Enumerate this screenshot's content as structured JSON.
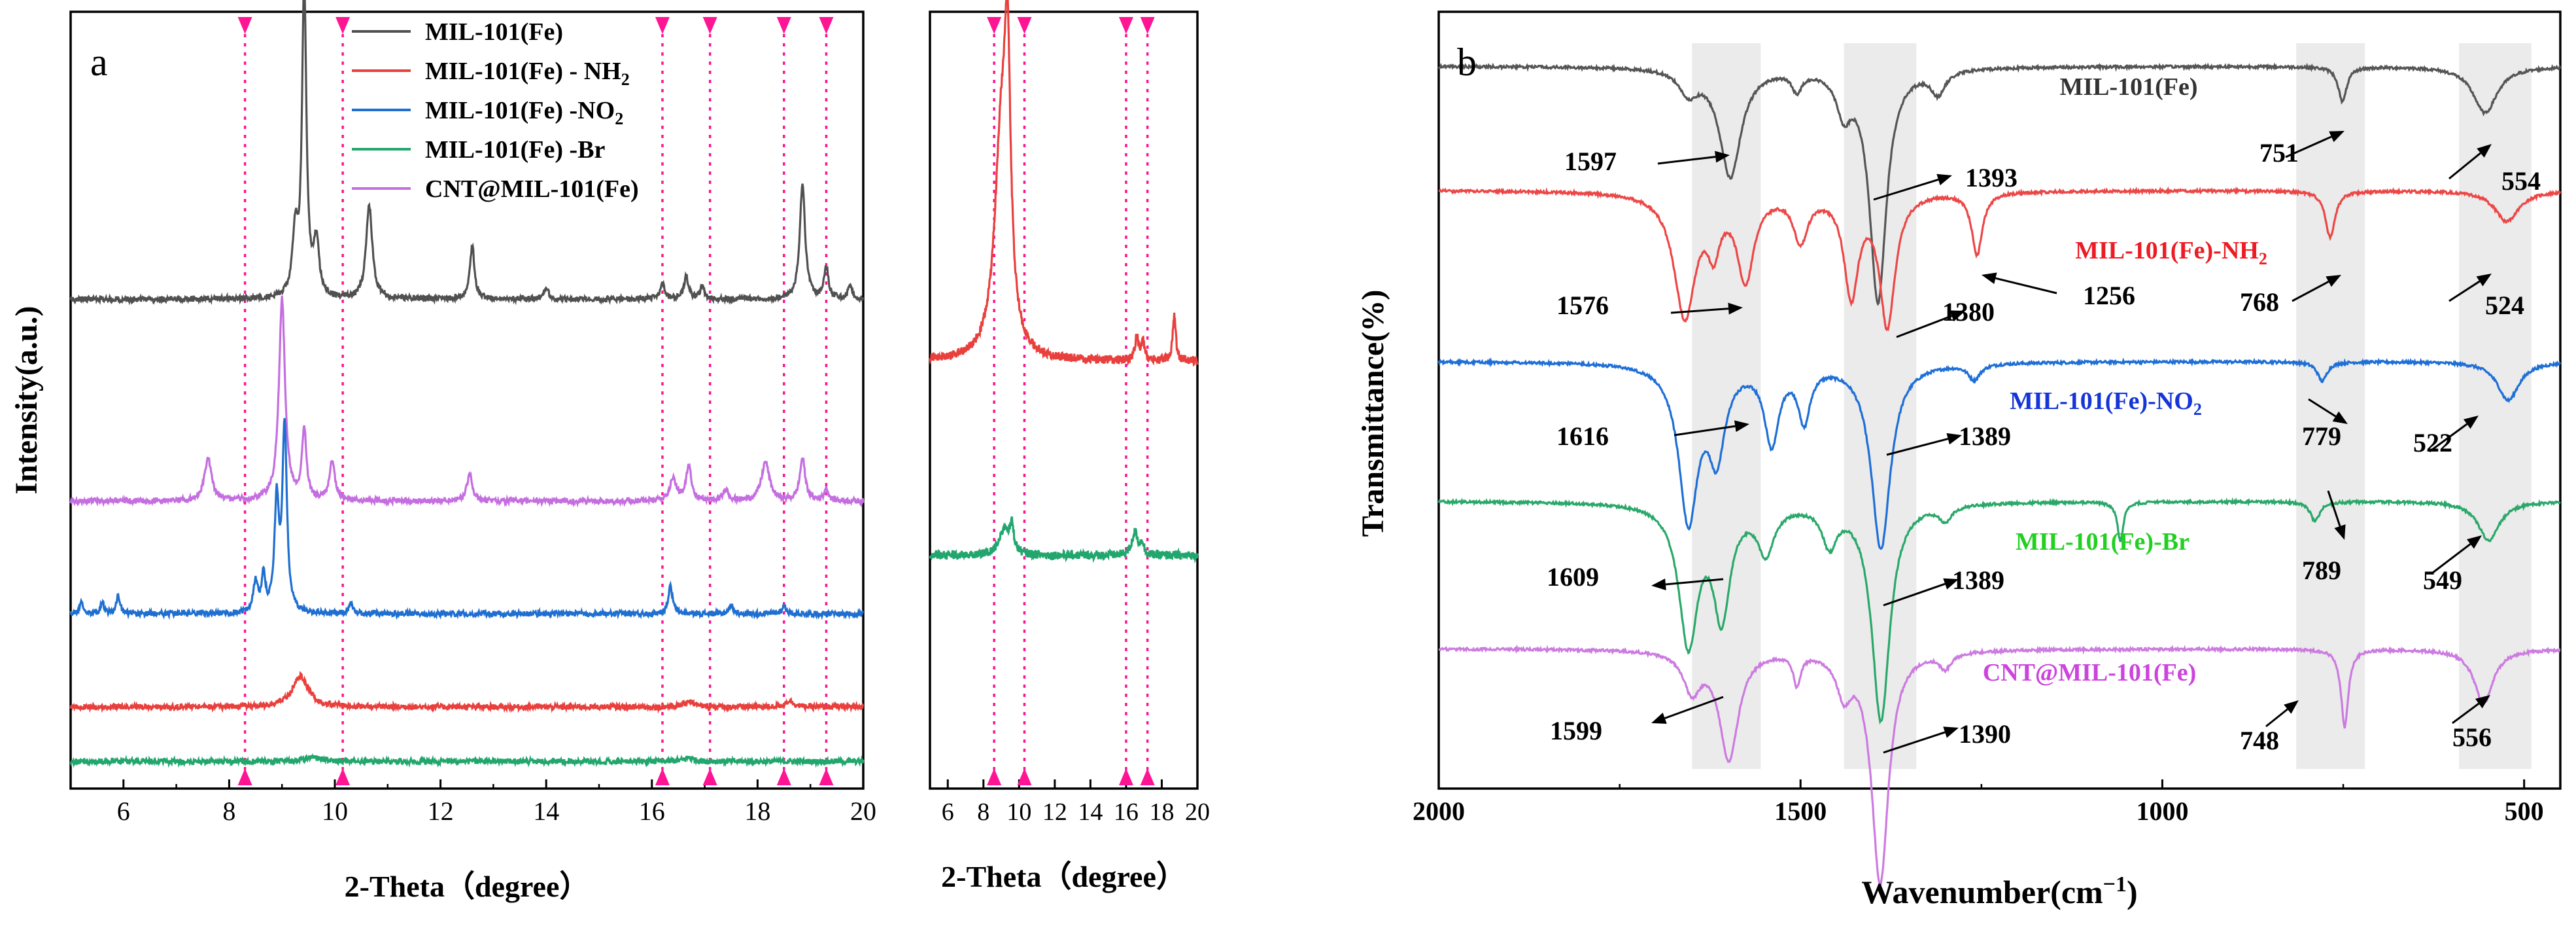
{
  "chart_data": [
    {
      "panel": "a",
      "type": "line",
      "xlabel": "2-Theta（degree）",
      "ylabel": "Intensity(a.u.)",
      "xlim": [
        5,
        20
      ],
      "ylim": [
        0,
        100
      ],
      "xticks": [
        "6",
        "8",
        "10",
        "12",
        "14",
        "16",
        "18",
        "20"
      ],
      "reference_lines": [
        8.3,
        10.15,
        16.2,
        17.1,
        18.5,
        19.3
      ],
      "legend": [
        "MIL-101(Fe)",
        "MIL-101(Fe) - NH",
        "MIL-101(Fe) -NO",
        "MIL-101(Fe) -Br",
        "CNT@MIL-101(Fe)"
      ],
      "series": [
        {
          "name": "MIL-101(Fe)",
          "color": "#505050",
          "baseline": 63,
          "peaks": [
            [
              9.25,
              8,
              0.06
            ],
            [
              9.42,
              40,
              0.05
            ],
            [
              9.65,
              7,
              0.06
            ],
            [
              10.65,
              12,
              0.07
            ],
            [
              12.6,
              7,
              0.05
            ],
            [
              14.0,
              1.5,
              0.05
            ],
            [
              16.2,
              2,
              0.05
            ],
            [
              16.65,
              3,
              0.05
            ],
            [
              16.95,
              1.5,
              0.05
            ],
            [
              18.85,
              15,
              0.06
            ],
            [
              19.3,
              4,
              0.05
            ],
            [
              19.75,
              1.5,
              0.05
            ]
          ]
        },
        {
          "name": "CNT@MIL-101(Fe)",
          "color": "#c56ee0",
          "baseline": 37,
          "peaks": [
            [
              7.6,
              5.5,
              0.08
            ],
            [
              9.0,
              26,
              0.07
            ],
            [
              9.42,
              9,
              0.05
            ],
            [
              9.95,
              5,
              0.06
            ],
            [
              12.55,
              3.5,
              0.06
            ],
            [
              16.4,
              3,
              0.07
            ],
            [
              16.7,
              4.5,
              0.06
            ],
            [
              17.4,
              1.5,
              0.06
            ],
            [
              18.15,
              5,
              0.09
            ],
            [
              18.85,
              5.5,
              0.06
            ],
            [
              19.3,
              1.5,
              0.05
            ]
          ]
        },
        {
          "name": "MIL-101(Fe) -NO",
          "color": "#1f6fd1",
          "baseline": 22.5,
          "peaks": [
            [
              5.2,
              1.5,
              0.04
            ],
            [
              5.6,
              1.5,
              0.04
            ],
            [
              5.9,
              2.5,
              0.04
            ],
            [
              8.5,
              4,
              0.05
            ],
            [
              8.65,
              5,
              0.04
            ],
            [
              8.9,
              14,
              0.05
            ],
            [
              9.05,
              24,
              0.05
            ],
            [
              10.3,
              1.5,
              0.04
            ],
            [
              16.35,
              3.5,
              0.05
            ],
            [
              17.5,
              1,
              0.05
            ],
            [
              18.5,
              1,
              0.05
            ]
          ]
        },
        {
          "name": "MIL-101(Fe) - NH",
          "color": "#e8403d",
          "baseline": 10.5,
          "peaks": [
            [
              9.35,
              4,
              0.18
            ],
            [
              16.7,
              0.8,
              0.1
            ],
            [
              18.6,
              0.8,
              0.1
            ]
          ]
        },
        {
          "name": "MIL-101(Fe) -Br",
          "color": "#22a66e",
          "baseline": 3.5,
          "peaks": [
            [
              9.6,
              0.6,
              0.15
            ],
            [
              16.7,
              0.5,
              0.1
            ]
          ]
        }
      ]
    },
    {
      "panel": "a-inset",
      "type": "line",
      "xlabel": "2-Theta（degree）",
      "xlim": [
        5,
        20
      ],
      "ylim": [
        0,
        100
      ],
      "xticks": [
        "6",
        "8",
        "10",
        "12",
        "14",
        "16",
        "18",
        "20"
      ],
      "reference_lines": [
        8.6,
        10.3,
        16.0,
        17.2
      ],
      "series": [
        {
          "name": "MIL-101(Fe) - NH",
          "color": "#e8403d",
          "baseline": 55,
          "peaks": [
            [
              9.0,
              28,
              0.45
            ],
            [
              9.35,
              30,
              0.2
            ],
            [
              16.6,
              3,
              0.12
            ],
            [
              16.95,
              2.5,
              0.1
            ],
            [
              18.7,
              6,
              0.1
            ]
          ]
        },
        {
          "name": "MIL-101(Fe) -Br",
          "color": "#22a66e",
          "baseline": 30,
          "peaks": [
            [
              9.2,
              3.5,
              0.35
            ],
            [
              9.6,
              3,
              0.12
            ],
            [
              16.5,
              3,
              0.2
            ],
            [
              16.9,
              1.5,
              0.1
            ]
          ]
        }
      ]
    },
    {
      "panel": "b",
      "type": "line",
      "xlabel": "Wavenumber(cm",
      "ylabel": "Transmittance(%)",
      "xlim": [
        2000,
        450
      ],
      "ylim": [
        0,
        100
      ],
      "xticks": [
        "2000",
        "1500",
        "1000",
        "500"
      ],
      "shaded_bands": [
        [
          1650,
          1555
        ],
        [
          1440,
          1340
        ],
        [
          815,
          720
        ],
        [
          590,
          490
        ]
      ],
      "series": [
        {
          "name": "MIL-101(Fe)",
          "color": "#555555",
          "baseline": 93,
          "dips": [
            [
              1655,
              3,
              15
            ],
            [
              1597,
              14,
              18
            ],
            [
              1505,
              2.5,
              8
            ],
            [
              1440,
              5,
              12
            ],
            [
              1393,
              30,
              14
            ],
            [
              1310,
              3,
              12
            ],
            [
              751,
              4.5,
              7
            ],
            [
              554,
              6,
              20
            ]
          ]
        },
        {
          "name": "MIL-101(Fe)-NH",
          "color": "#ec4747",
          "baseline": 77,
          "dips": [
            [
              1660,
              16,
              18
            ],
            [
              1620,
              6,
              10
            ],
            [
              1576,
              11,
              14
            ],
            [
              1500,
              6,
              12
            ],
            [
              1430,
              13,
              12
            ],
            [
              1380,
              17,
              13
            ],
            [
              1256,
              8,
              9
            ],
            [
              768,
              6,
              8
            ],
            [
              524,
              4,
              20
            ]
          ]
        },
        {
          "name": "MIL-101(Fe)-NO",
          "color": "#1e6fd6",
          "baseline": 55,
          "dips": [
            [
              1655,
              20,
              16
            ],
            [
              1616,
              11,
              14
            ],
            [
              1540,
              10,
              12
            ],
            [
              1495,
              7,
              10
            ],
            [
              1389,
              24,
              16
            ],
            [
              1260,
              2,
              10
            ],
            [
              779,
              2.5,
              8
            ],
            [
              522,
              5,
              18
            ]
          ]
        },
        {
          "name": "MIL-101(Fe)-Br",
          "color": "#2aa86a",
          "baseline": 37,
          "dips": [
            [
              1655,
              18,
              16
            ],
            [
              1609,
              14,
              14
            ],
            [
              1548,
              6,
              14
            ],
            [
              1460,
              5,
              12
            ],
            [
              1389,
              28,
              15
            ],
            [
              1300,
              2,
              10
            ],
            [
              1058,
              5,
              5
            ],
            [
              789,
              2.5,
              8
            ],
            [
              549,
              5,
              18
            ]
          ]
        },
        {
          "name": "CNT@MIL-101(Fe)",
          "color": "#cc7be0",
          "baseline": 18,
          "dips": [
            [
              1650,
              5,
              14
            ],
            [
              1599,
              14,
              16
            ],
            [
              1505,
              4,
              6
            ],
            [
              1440,
              5,
              12
            ],
            [
              1390,
              30,
              14
            ],
            [
              1300,
              2,
              10
            ],
            [
              748,
              10,
              6
            ],
            [
              556,
              7,
              16
            ]
          ]
        }
      ],
      "annotations": [
        {
          "text": "1597",
          "color": "#000000"
        },
        {
          "text": "1393",
          "color": "#000000"
        },
        {
          "text": "751",
          "color": "#000000"
        },
        {
          "text": "554",
          "color": "#000000"
        },
        {
          "text": "1576",
          "color": "#000000"
        },
        {
          "text": "1380",
          "color": "#000000"
        },
        {
          "text": "1256",
          "color": "#000000"
        },
        {
          "text": "768",
          "color": "#000000"
        },
        {
          "text": "524",
          "color": "#000000"
        },
        {
          "text": "1616",
          "color": "#000000"
        },
        {
          "text": "1389",
          "color": "#000000"
        },
        {
          "text": "779",
          "color": "#000000"
        },
        {
          "text": "522",
          "color": "#000000"
        },
        {
          "text": "1609",
          "color": "#000000"
        },
        {
          "text": "1389",
          "color": "#000000"
        },
        {
          "text": "789",
          "color": "#000000"
        },
        {
          "text": "549",
          "color": "#000000"
        },
        {
          "text": "1599",
          "color": "#000000"
        },
        {
          "text": "1390",
          "color": "#000000"
        },
        {
          "text": "748",
          "color": "#000000"
        },
        {
          "text": "556",
          "color": "#000000"
        }
      ],
      "series_labels": [
        {
          "text": "MIL-101(Fe)",
          "sub": "",
          "color": "#333333"
        },
        {
          "text": "MIL-101(Fe)-NH",
          "sub": "2",
          "color": "#ec1c24"
        },
        {
          "text": "MIL-101(Fe)-NO",
          "sub": "2",
          "color": "#1535d6"
        },
        {
          "text": "MIL-101(Fe)-Br",
          "sub": "",
          "color": "#22d022"
        },
        {
          "text": "CNT@MIL-101(Fe)",
          "sub": "",
          "color": "#cc44dd"
        }
      ]
    }
  ],
  "panel_labels": {
    "a": "a",
    "b": "b"
  },
  "legend_subscripts": [
    "",
    "2",
    "2",
    "",
    ""
  ],
  "xlabel_b_superscript": "−1",
  "xlabel_b_suffix": ")",
  "colors": {
    "reference_line": "#ff1493",
    "band": "#ebebeb",
    "axis": "#000000"
  }
}
